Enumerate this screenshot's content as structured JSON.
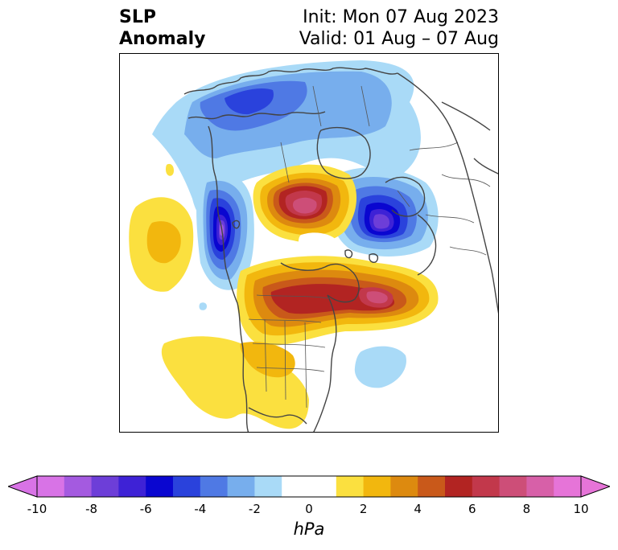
{
  "title": {
    "left_line1": "SLP",
    "left_line2": "Anomaly",
    "init": "Init: Mon 07 Aug 2023",
    "valid": "Valid: 01 Aug – 07 Aug"
  },
  "map": {
    "projection": "North polar stereographic",
    "colors": {
      "neg10": "#d873e6",
      "neg9": "#a45ae0",
      "neg8": "#6d3ed8",
      "neg7": "#3e22d6",
      "neg6": "#0a06d0",
      "neg5": "#2a42dc",
      "neg4": "#4f79e4",
      "neg3": "#77aeed",
      "neg2": "#a9daf7",
      "pos2": "#fbe03f",
      "pos3": "#f2b70e",
      "pos4": "#dd8a0f",
      "pos5": "#c9591a",
      "pos6": "#b22422",
      "pos7": "#c2384b",
      "pos8": "#cd4e78",
      "pos9": "#d760a8",
      "pos10": "#e674d8"
    }
  },
  "colorbar": {
    "unit": "hPa",
    "ticks": [
      "-10",
      "-8",
      "-6",
      "-4",
      "-2",
      "0",
      "2",
      "4",
      "6",
      "8",
      "10"
    ],
    "bins": [
      "#d873e6",
      "#a45ae0",
      "#6d3ed8",
      "#3e22d6",
      "#0a06d0",
      "#2a42dc",
      "#4f79e4",
      "#77aeed",
      "#a9daf7",
      "#ffffff",
      "#ffffff",
      "#fbe03f",
      "#f2b70e",
      "#dd8a0f",
      "#c9591a",
      "#b22422",
      "#c2384b",
      "#cd4e78",
      "#d760a8",
      "#e674d8"
    ]
  }
}
